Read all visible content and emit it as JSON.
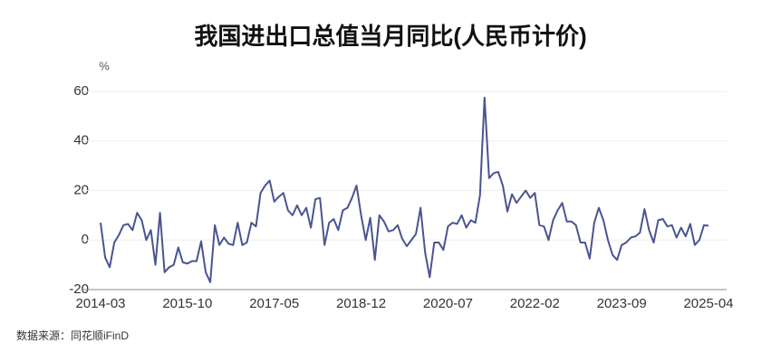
{
  "chart_data": {
    "type": "line",
    "title": "我国进出口总值当月同比(人民币计价)",
    "y_unit": "%",
    "source": "数据来源：同花顺iFinD",
    "categories": [
      "2014-03",
      null,
      null,
      null,
      null,
      null,
      null,
      null,
      null,
      null,
      null,
      null,
      null,
      null,
      null,
      null,
      null,
      null,
      null,
      "2015-10",
      null,
      null,
      null,
      null,
      null,
      null,
      null,
      null,
      null,
      null,
      null,
      null,
      null,
      null,
      null,
      null,
      null,
      null,
      "2017-05",
      null,
      null,
      null,
      null,
      null,
      null,
      null,
      null,
      null,
      null,
      null,
      null,
      null,
      null,
      null,
      null,
      null,
      null,
      "2018-12",
      null,
      null,
      null,
      null,
      null,
      null,
      null,
      null,
      null,
      null,
      null,
      null,
      null,
      null,
      null,
      null,
      null,
      null,
      "2020-07",
      null,
      null,
      null,
      null,
      null,
      null,
      null,
      null,
      null,
      null,
      null,
      null,
      null,
      null,
      null,
      null,
      null,
      null,
      "2022-02",
      null,
      null,
      null,
      null,
      null,
      null,
      null,
      null,
      null,
      null,
      null,
      null,
      null,
      null,
      null,
      null,
      null,
      null,
      "2023-09",
      null,
      null,
      null,
      null,
      null,
      null,
      null,
      null,
      null,
      null,
      null,
      null,
      null,
      null,
      null,
      null,
      null,
      null,
      "2025-04"
    ],
    "series": [
      {
        "name": "进出口总值当月同比",
        "color": "#4a5590",
        "values": [
          7,
          -7,
          -11,
          -1,
          2,
          6,
          6.5,
          4,
          11,
          8,
          0,
          4,
          -10,
          11,
          -13,
          -11,
          -10,
          -3,
          -9,
          -9.5,
          -8.5,
          -8.5,
          -0.5,
          -13,
          -17,
          6,
          -2,
          1,
          -1.5,
          -2,
          7,
          -2,
          -1,
          7,
          5.5,
          19,
          22,
          24,
          15.5,
          17.5,
          19,
          12,
          10,
          14,
          10,
          13,
          5,
          16.5,
          17,
          -2,
          7,
          8.5,
          4,
          12,
          13,
          17,
          22,
          10,
          0,
          9,
          -8,
          10,
          7.5,
          3.5,
          4,
          6,
          0.5,
          -2.5,
          0,
          2.5,
          13,
          -5,
          -15,
          -1,
          -1,
          -4,
          5.5,
          7,
          6.5,
          10,
          5,
          8,
          7,
          18,
          57.5,
          25,
          27,
          27.5,
          22,
          11.5,
          18.5,
          15,
          17.5,
          20,
          17,
          19,
          6,
          5.5,
          0,
          8,
          12,
          15,
          7.5,
          7.5,
          6,
          -1,
          -1,
          -7.5,
          7,
          13,
          8,
          0,
          -6,
          -8,
          -2,
          -1,
          1,
          1.5,
          3,
          12.5,
          4,
          -1,
          8,
          8.5,
          5.5,
          6,
          1,
          5,
          1.5,
          6.5,
          -2,
          0,
          6,
          5.8
        ]
      }
    ],
    "ylim": [
      -20,
      60
    ],
    "yticks": [
      -20,
      0,
      20,
      40,
      60
    ],
    "grid": true
  }
}
